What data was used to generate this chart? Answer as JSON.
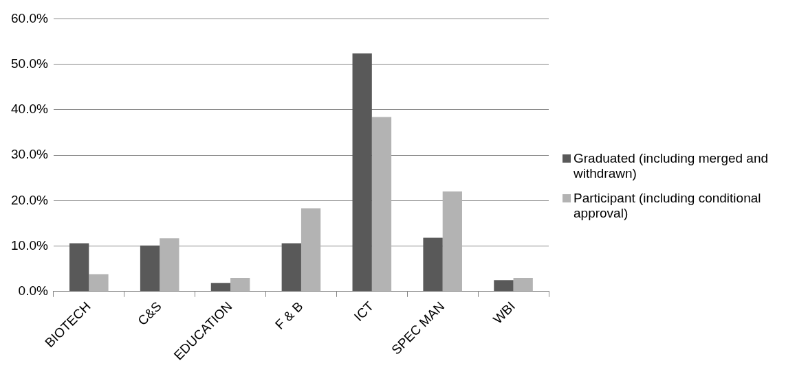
{
  "chart_data": {
    "type": "bar",
    "categories": [
      "BIOTECH",
      "C&S",
      "EDUCATION",
      "F & B",
      "ICT",
      "SPEC MAN",
      "WBI"
    ],
    "series": [
      {
        "name": "Graduated (including merged and withdrawn)",
        "color": "#595959",
        "values": [
          10.6,
          10.1,
          1.9,
          10.6,
          52.4,
          11.8,
          2.5
        ]
      },
      {
        "name": "Participant (including conditional approval)",
        "color": "#b3b3b3",
        "values": [
          3.8,
          11.7,
          3.0,
          18.3,
          38.4,
          22.0,
          3.0
        ]
      }
    ],
    "ylim": [
      0,
      60
    ],
    "yticks": [
      {
        "value": 0,
        "label": "0.0%"
      },
      {
        "value": 10,
        "label": "10.0%"
      },
      {
        "value": 20,
        "label": "20.0%"
      },
      {
        "value": 30,
        "label": "30.0%"
      },
      {
        "value": 40,
        "label": "40.0%"
      },
      {
        "value": 50,
        "label": "50.0%"
      },
      {
        "value": 60,
        "label": "60.0%"
      }
    ],
    "grid": "y",
    "legend": "right"
  }
}
